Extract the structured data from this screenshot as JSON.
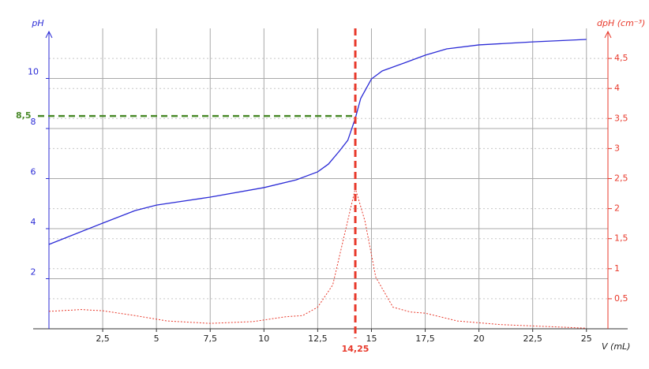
{
  "chart_data": {
    "type": "line",
    "xlabel": "V (mL)",
    "ylabel": "pH",
    "y2label": "dpH (cm⁻³)",
    "xlim": [
      0,
      26
    ],
    "ylim": [
      0,
      12
    ],
    "y2lim": [
      0,
      5
    ],
    "xticks": [
      {
        "value": 2.5,
        "label": "2,5"
      },
      5,
      {
        "value": 7.5,
        "label": "7,5"
      },
      10,
      {
        "value": 12.5,
        "label": "12,5"
      },
      15,
      {
        "value": 17.5,
        "label": "17,5"
      },
      20,
      {
        "value": 22.5,
        "label": "22,5"
      },
      25
    ],
    "yticks": [
      2,
      4,
      6,
      8,
      10
    ],
    "y2ticks": [
      {
        "value": 0.5,
        "label": "0,5"
      },
      1,
      {
        "value": 1.5,
        "label": "1,5"
      },
      2,
      {
        "value": 2.5,
        "label": "2,5"
      },
      3,
      {
        "value": 3.5,
        "label": "3,5"
      },
      4,
      {
        "value": 4.5,
        "label": "4,5"
      }
    ],
    "grid": true,
    "series": [
      {
        "name": "pH",
        "color": "#2b2bd6",
        "axis": "y",
        "x": [
          0,
          2.5,
          4,
          5,
          7.5,
          10,
          11.5,
          12.5,
          13,
          13.5,
          13.9,
          14.25,
          14.5,
          15,
          15.5,
          16.5,
          17.5,
          18.5,
          20,
          22.5,
          25
        ],
        "values": [
          3.37,
          4.22,
          4.72,
          4.94,
          5.26,
          5.64,
          5.95,
          6.27,
          6.58,
          7.09,
          7.53,
          8.41,
          9.2,
          9.98,
          10.3,
          10.61,
          10.93,
          11.18,
          11.34,
          11.46,
          11.56
        ]
      },
      {
        "name": "dpH",
        "color": "#e8392b",
        "axis": "y2",
        "x": [
          0,
          1.5,
          2.5,
          4,
          5.5,
          7.5,
          9.5,
          11,
          11.8,
          12.5,
          13.2,
          13.8,
          14.25,
          14.7,
          15.2,
          16,
          16.8,
          17.5,
          19,
          21,
          25
        ],
        "values": [
          0.29,
          0.32,
          0.3,
          0.22,
          0.13,
          0.09,
          0.12,
          0.2,
          0.22,
          0.36,
          0.73,
          1.65,
          2.34,
          1.79,
          0.86,
          0.36,
          0.28,
          0.26,
          0.13,
          0.07,
          0.01
        ]
      }
    ],
    "annotations": [
      {
        "text": "8,5",
        "axis": "y",
        "value": 8.5,
        "color": "#4a8a2a"
      },
      {
        "text": "14,25",
        "axis": "x",
        "value": 14.25,
        "color": "#e8392b"
      }
    ]
  }
}
